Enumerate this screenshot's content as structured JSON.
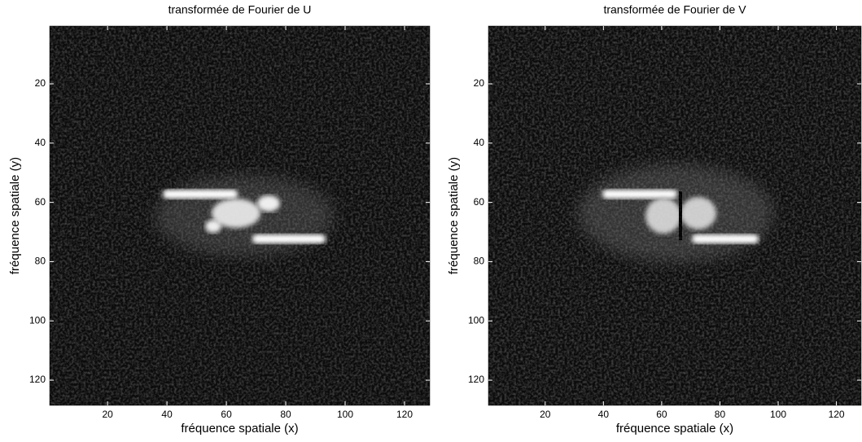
{
  "chart_data": [
    {
      "type": "image",
      "title": "transformée de Fourier de U",
      "xlabel": "fréquence spatiale (x)",
      "ylabel": "fréquence spatiale (y)",
      "xlim": [
        0.5,
        128.5
      ],
      "ylim": [
        0.5,
        128.5
      ],
      "y_direction": "reverse",
      "xticks": [
        20,
        40,
        60,
        80,
        100,
        120
      ],
      "yticks": [
        20,
        40,
        60,
        80,
        100,
        120
      ],
      "colormap": "gray"
    },
    {
      "type": "image",
      "title": "transformée de Fourier de V",
      "xlabel": "fréquence spatiale (x)",
      "ylabel": "fréquence spatiale (y)",
      "xlim": [
        0.5,
        128.5
      ],
      "ylim": [
        0.5,
        128.5
      ],
      "y_direction": "reverse",
      "xticks": [
        20,
        40,
        60,
        80,
        100,
        120
      ],
      "yticks": [
        20,
        40,
        60,
        80,
        100,
        120
      ],
      "colormap": "gray"
    }
  ]
}
